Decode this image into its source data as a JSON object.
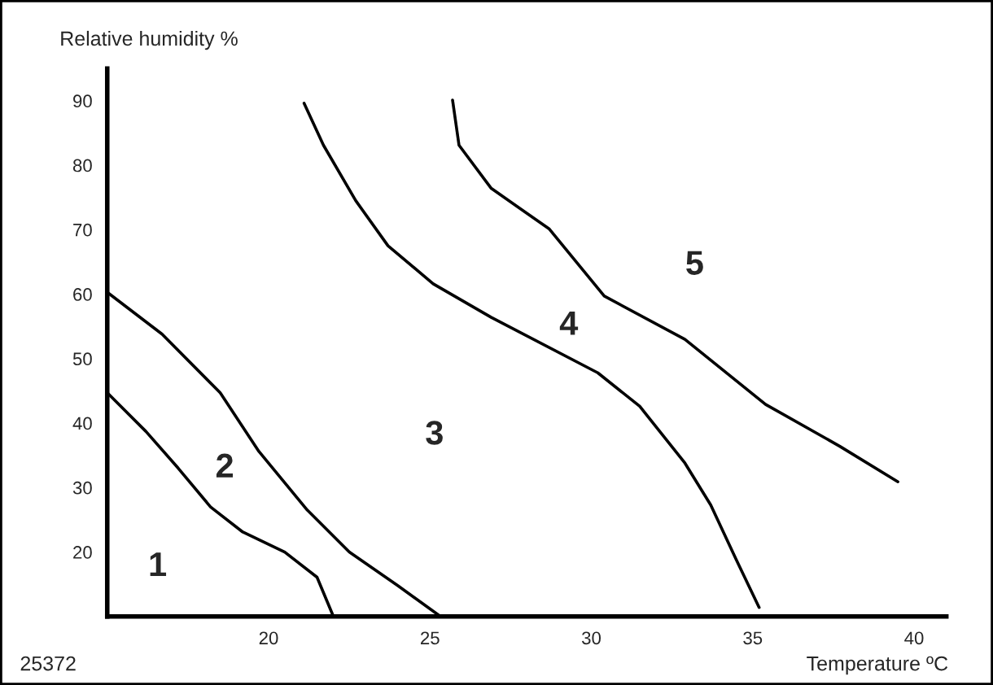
{
  "chart_data": {
    "type": "line",
    "xlabel": "Temperature ºC",
    "ylabel": "Relative humidity %",
    "xlim": [
      15,
      41
    ],
    "ylim": [
      10,
      95
    ],
    "xticks": [
      20,
      25,
      30,
      35,
      40
    ],
    "yticks": [
      20,
      30,
      40,
      50,
      60,
      70,
      80,
      90
    ],
    "grid": false,
    "marker": "none",
    "line_style": "solid",
    "series": [
      {
        "color": "#000000",
        "x": [
          15,
          16.2,
          17.2,
          18.2,
          19.2,
          20.5,
          21.5,
          22.0
        ],
        "values": [
          44.7,
          38.7,
          33.0,
          27.0,
          23.1,
          20.0,
          16.1,
          10.1
        ]
      },
      {
        "color": "#000000",
        "x": [
          15,
          16.7,
          18.5,
          19.7,
          21.2,
          22.5,
          24.0,
          25.3
        ],
        "values": [
          60.3,
          53.8,
          44.7,
          35.6,
          26.5,
          20.0,
          14.8,
          10.1
        ]
      },
      {
        "color": "#000000",
        "x": [
          21.1,
          21.7,
          22.7,
          23.7,
          25.1,
          26.9,
          30.2,
          31.5,
          32.9,
          33.7,
          34.5,
          35.2
        ],
        "values": [
          89.6,
          83.1,
          74.5,
          67.5,
          61.6,
          56.4,
          47.8,
          42.6,
          33.8,
          27.3,
          18.7,
          11.4
        ]
      },
      {
        "color": "#000000",
        "x": [
          25.7,
          25.9,
          26.9,
          28.7,
          30.4,
          32.9,
          35.4,
          37.7,
          39.5
        ],
        "values": [
          90.1,
          83.1,
          76.4,
          70.1,
          59.7,
          53.0,
          42.9,
          36.4,
          30.9
        ]
      }
    ],
    "annotations": [
      "1",
      "2",
      "3",
      "4",
      "5",
      "25372"
    ]
  }
}
